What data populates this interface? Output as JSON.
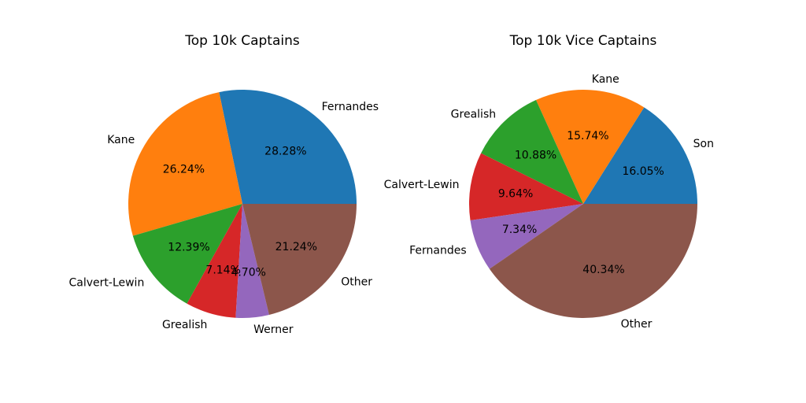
{
  "chart_data": [
    {
      "type": "pie",
      "title": "Top 10k Captains",
      "slices": [
        {
          "label": "Fernandes",
          "value": 28.28,
          "pct_label": "28.28%",
          "color": "#1f77b4"
        },
        {
          "label": "Kane",
          "value": 26.24,
          "pct_label": "26.24%",
          "color": "#ff7f0e"
        },
        {
          "label": "Calvert-Lewin",
          "value": 12.39,
          "pct_label": "12.39%",
          "color": "#2ca02c"
        },
        {
          "label": "Grealish",
          "value": 7.14,
          "pct_label": "7.14%",
          "color": "#d62728"
        },
        {
          "label": "Werner",
          "value": 4.7,
          "pct_label": "4.70%",
          "color": "#9467bd"
        },
        {
          "label": "Other",
          "value": 21.24,
          "pct_label": "21.24%",
          "color": "#8c564b"
        }
      ]
    },
    {
      "type": "pie",
      "title": "Top 10k Vice Captains",
      "slices": [
        {
          "label": "Son",
          "value": 16.05,
          "pct_label": "16.05%",
          "color": "#1f77b4"
        },
        {
          "label": "Kane",
          "value": 15.74,
          "pct_label": "15.74%",
          "color": "#ff7f0e"
        },
        {
          "label": "Grealish",
          "value": 10.88,
          "pct_label": "10.88%",
          "color": "#2ca02c"
        },
        {
          "label": "Calvert-Lewin",
          "value": 9.64,
          "pct_label": "9.64%",
          "color": "#d62728"
        },
        {
          "label": "Fernandes",
          "value": 7.34,
          "pct_label": "7.34%",
          "color": "#9467bd"
        },
        {
          "label": "Other",
          "value": 40.34,
          "pct_label": "40.34%",
          "color": "#8c564b"
        }
      ]
    }
  ]
}
